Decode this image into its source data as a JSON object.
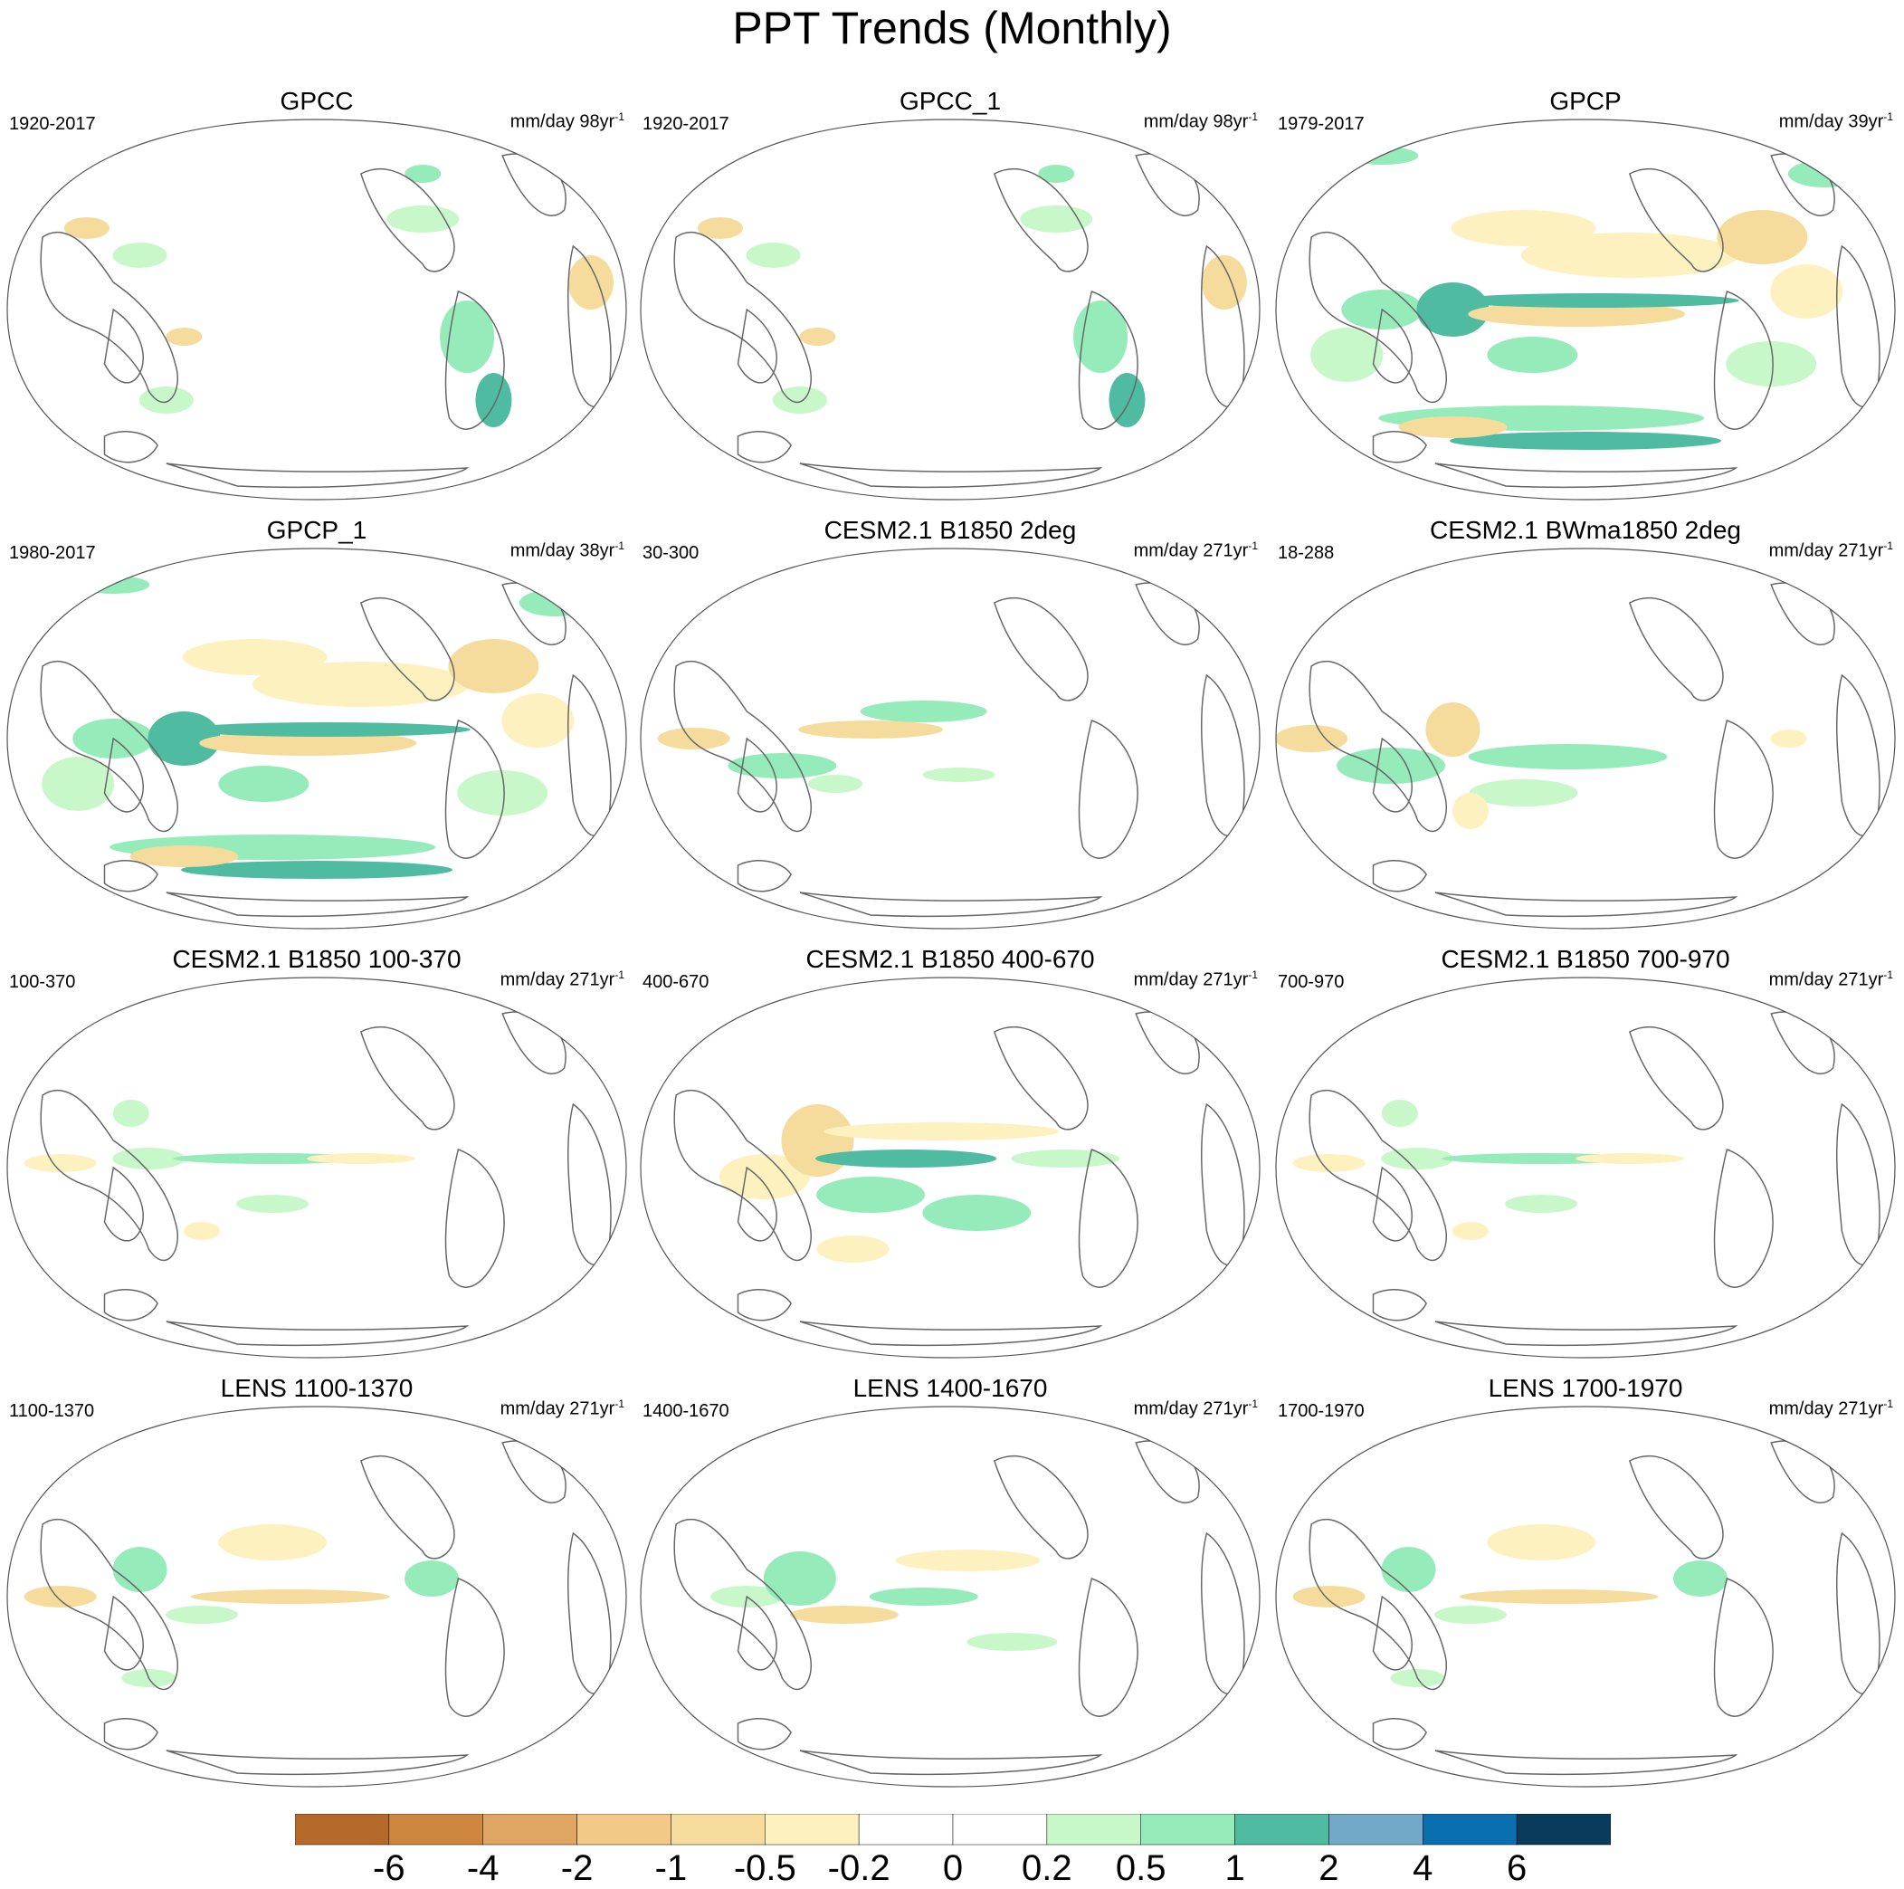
{
  "title": "PPT Trends (Monthly)",
  "panels": [
    {
      "title": "GPCC",
      "period": "1920-2017",
      "units": "mm/day 98yr",
      "exponent": "-1",
      "pattern": "gpcc"
    },
    {
      "title": "GPCC_1",
      "period": "1920-2017",
      "units": "mm/day 98yr",
      "exponent": "-1",
      "pattern": "gpcc"
    },
    {
      "title": "GPCP",
      "period": "1979-2017",
      "units": "mm/day 39yr",
      "exponent": "-1",
      "pattern": "gpcp"
    },
    {
      "title": "GPCP_1",
      "period": "1980-2017",
      "units": "mm/day 38yr",
      "exponent": "-1",
      "pattern": "gpcp"
    },
    {
      "title": "CESM2.1 B1850 2deg",
      "period": "30-300",
      "units": "mm/day 271yr",
      "exponent": "-1",
      "pattern": "model_a"
    },
    {
      "title": "CESM2.1 BWma1850 2deg",
      "period": "18-288",
      "units": "mm/day 271yr",
      "exponent": "-1",
      "pattern": "model_b"
    },
    {
      "title": "CESM2.1 B1850 100-370",
      "period": "100-370",
      "units": "mm/day 271yr",
      "exponent": "-1",
      "pattern": "model_c"
    },
    {
      "title": "CESM2.1 B1850 400-670",
      "period": "400-670",
      "units": "mm/day 271yr",
      "exponent": "-1",
      "pattern": "model_d"
    },
    {
      "title": "CESM2.1 B1850 700-970",
      "period": "700-970",
      "units": "mm/day 271yr",
      "exponent": "-1",
      "pattern": "model_c"
    },
    {
      "title": "LENS 1100-1370",
      "period": "1100-1370",
      "units": "mm/day 271yr",
      "exponent": "-1",
      "pattern": "model_e"
    },
    {
      "title": "LENS 1400-1670",
      "period": "1400-1670",
      "units": "mm/day 271yr",
      "exponent": "-1",
      "pattern": "model_f"
    },
    {
      "title": "LENS 1700-1970",
      "period": "1700-1970",
      "units": "mm/day 271yr",
      "exponent": "-1",
      "pattern": "model_e"
    }
  ],
  "colorbar": {
    "colors": [
      "#b5692b",
      "#cf8740",
      "#e0a563",
      "#f2c987",
      "#f5dc9c",
      "#fdf1bf",
      "#ffffff",
      "#ffffff",
      "#c8f7c9",
      "#95ebb9",
      "#4fbba0",
      "#72a9c9",
      "#0a6fae",
      "#083b5c"
    ],
    "labels": [
      "-6",
      "-4",
      "-2",
      "-1",
      "-0.5",
      "-0.2",
      "0",
      "0.2",
      "0.5",
      "1",
      "2",
      "4",
      "6"
    ]
  },
  "palette": {
    "dry_strong": "#e0a563",
    "dry": "#f5dc9c",
    "dry_light": "#fdf1bf",
    "wet_light": "#c8f7c9",
    "wet": "#95ebb9",
    "wet_strong": "#4fbba0",
    "coast": "#666666"
  }
}
